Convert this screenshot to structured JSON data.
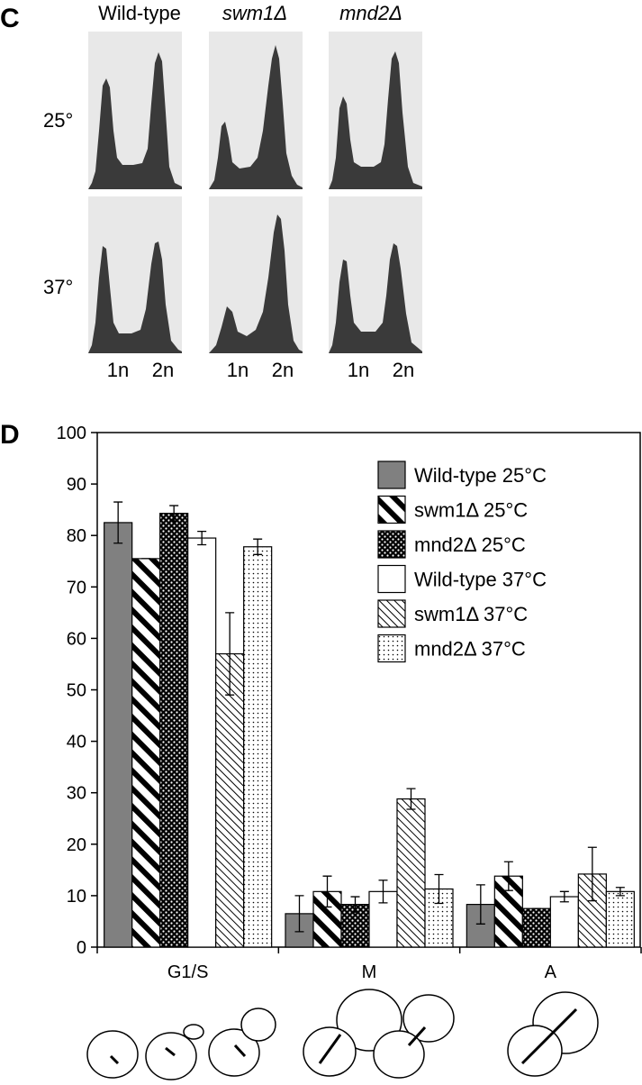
{
  "panel_c": {
    "label": "C",
    "columns": [
      "Wild-type",
      "swm1Δ",
      "mnd2Δ"
    ],
    "rows": [
      "25°",
      "37°"
    ],
    "x_labels": [
      "1n",
      "2n"
    ]
  },
  "chart_data": {
    "type": "bar",
    "label": "D",
    "categories": [
      "G1/S",
      "M",
      "A"
    ],
    "series": [
      {
        "name": "Wild-type 25°C",
        "color": "#808080",
        "pattern": "solid",
        "values": [
          82.5,
          6.5,
          8.3
        ],
        "errors": [
          4,
          3.5,
          3.8
        ]
      },
      {
        "name": "swm1Δ 25°C",
        "color": "#000000",
        "pattern": "thick-stripes",
        "values": [
          75.5,
          10.8,
          13.8
        ],
        "errors": [
          0,
          3,
          2.8
        ]
      },
      {
        "name": "mnd2Δ 25°C",
        "color": "#000000",
        "pattern": "dots-on-black",
        "values": [
          84.3,
          8.3,
          7.5
        ],
        "errors": [
          1.5,
          1.5,
          0
        ]
      },
      {
        "name": "Wild-type 37°C",
        "color": "#ffffff",
        "pattern": "solid",
        "values": [
          79.5,
          10.8,
          9.8
        ],
        "errors": [
          1.3,
          2.2,
          1
        ]
      },
      {
        "name": "swm1Δ 37°C",
        "color": "#000000",
        "pattern": "thin-stripes",
        "values": [
          57,
          28.8,
          14.2
        ],
        "errors": [
          8,
          2,
          5.2
        ]
      },
      {
        "name": "mnd2Δ 37°C",
        "color": "#000000",
        "pattern": "sparse-dots",
        "values": [
          77.8,
          11.3,
          10.8
        ],
        "errors": [
          1.5,
          2.8,
          0.8
        ]
      }
    ],
    "ylim": [
      0,
      100
    ],
    "yticks": [
      0,
      10,
      20,
      30,
      40,
      50,
      60,
      70,
      80,
      90,
      100
    ],
    "legend": "upper right"
  }
}
